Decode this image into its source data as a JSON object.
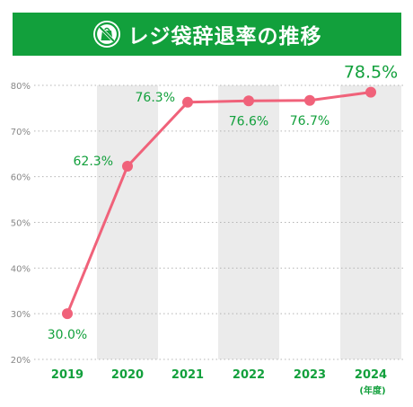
{
  "header": {
    "title": "レジ袋辞退率の推移",
    "icon": "no-plastic-bag-icon"
  },
  "colors": {
    "header_bg": "#12a03c",
    "accent_green": "#12a03c",
    "line": "#f0627a",
    "band": "#ebebeb",
    "grid": "#b4b4b4",
    "axis_text": "#888888"
  },
  "chart_data": {
    "type": "line",
    "title": "レジ袋辞退率の推移",
    "x": [
      "2019",
      "2020",
      "2021",
      "2022",
      "2023",
      "2024"
    ],
    "series": [
      {
        "values": [
          30.0,
          62.3,
          76.3,
          76.6,
          76.7,
          78.5
        ],
        "labels": [
          "30.0%",
          "62.3%",
          "76.3%",
          "76.6%",
          "76.7%",
          "78.5%"
        ]
      }
    ],
    "xunit": "(年度)",
    "ylim": [
      20,
      80
    ],
    "yticks": [
      "20%",
      "30%",
      "40%",
      "50%",
      "60%",
      "70%",
      "80%"
    ],
    "grid": true,
    "shaded_columns": [
      "2020",
      "2022",
      "2024"
    ]
  }
}
